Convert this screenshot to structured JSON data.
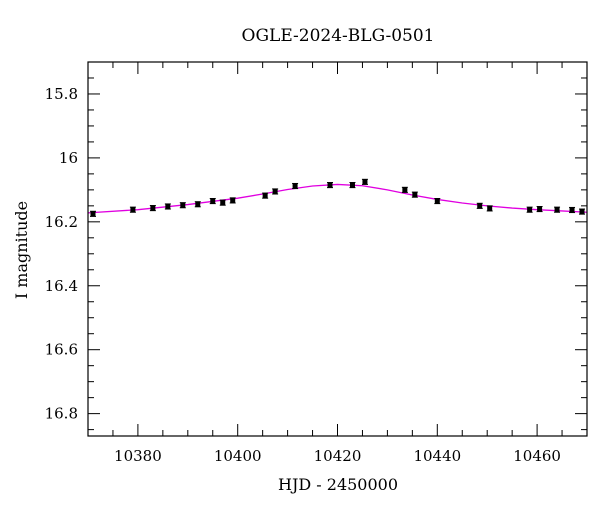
{
  "chart_data": {
    "type": "scatter",
    "title": "OGLE-2024-BLG-0501",
    "xlabel": "HJD - 2450000",
    "ylabel": "I magnitude",
    "xlim": [
      10370,
      10470
    ],
    "ylim": [
      15.7,
      16.87
    ],
    "y_inverted": true,
    "x_ticks": [
      10380,
      10400,
      10420,
      10440,
      10460
    ],
    "x_tick_labels": [
      "10380",
      "10400",
      "10420",
      "10440",
      "10460"
    ],
    "y_ticks": [
      15.8,
      16.0,
      16.2,
      16.4,
      16.6,
      16.8
    ],
    "y_tick_labels": [
      "15.8",
      "16",
      "16.2",
      "16.4",
      "16.6",
      "16.8"
    ],
    "grid": false,
    "series": [
      {
        "name": "data",
        "kind": "points_with_errorbars",
        "color": "#000000",
        "points": [
          {
            "x": 10371.0,
            "y": 16.175,
            "err": 0.008
          },
          {
            "x": 10379.0,
            "y": 16.162,
            "err": 0.008
          },
          {
            "x": 10383.0,
            "y": 16.157,
            "err": 0.008
          },
          {
            "x": 10386.0,
            "y": 16.152,
            "err": 0.008
          },
          {
            "x": 10389.0,
            "y": 16.148,
            "err": 0.008
          },
          {
            "x": 10392.0,
            "y": 16.145,
            "err": 0.008
          },
          {
            "x": 10395.0,
            "y": 16.135,
            "err": 0.008
          },
          {
            "x": 10397.0,
            "y": 16.14,
            "err": 0.008
          },
          {
            "x": 10399.0,
            "y": 16.133,
            "err": 0.008
          },
          {
            "x": 10405.5,
            "y": 16.118,
            "err": 0.008
          },
          {
            "x": 10407.5,
            "y": 16.105,
            "err": 0.008
          },
          {
            "x": 10411.5,
            "y": 16.088,
            "err": 0.008
          },
          {
            "x": 10418.5,
            "y": 16.085,
            "err": 0.008
          },
          {
            "x": 10423.0,
            "y": 16.085,
            "err": 0.008
          },
          {
            "x": 10425.5,
            "y": 16.075,
            "err": 0.008
          },
          {
            "x": 10433.5,
            "y": 16.1,
            "err": 0.008
          },
          {
            "x": 10435.5,
            "y": 16.115,
            "err": 0.008
          },
          {
            "x": 10440.0,
            "y": 16.135,
            "err": 0.008
          },
          {
            "x": 10448.5,
            "y": 16.15,
            "err": 0.008
          },
          {
            "x": 10450.5,
            "y": 16.158,
            "err": 0.008
          },
          {
            "x": 10458.5,
            "y": 16.162,
            "err": 0.008
          },
          {
            "x": 10460.5,
            "y": 16.16,
            "err": 0.008
          },
          {
            "x": 10464.0,
            "y": 16.162,
            "err": 0.008
          },
          {
            "x": 10467.0,
            "y": 16.163,
            "err": 0.008
          },
          {
            "x": 10469.0,
            "y": 16.168,
            "err": 0.008
          }
        ]
      },
      {
        "name": "model",
        "kind": "line",
        "color": "#e000e0",
        "points": [
          {
            "x": 10370,
            "y": 16.172
          },
          {
            "x": 10380,
            "y": 16.162
          },
          {
            "x": 10390,
            "y": 16.146
          },
          {
            "x": 10400,
            "y": 16.126
          },
          {
            "x": 10405,
            "y": 16.113
          },
          {
            "x": 10410,
            "y": 16.099
          },
          {
            "x": 10415,
            "y": 16.088
          },
          {
            "x": 10420,
            "y": 16.083
          },
          {
            "x": 10425,
            "y": 16.087
          },
          {
            "x": 10430,
            "y": 16.1
          },
          {
            "x": 10435,
            "y": 16.116
          },
          {
            "x": 10440,
            "y": 16.13
          },
          {
            "x": 10445,
            "y": 16.141
          },
          {
            "x": 10450,
            "y": 16.15
          },
          {
            "x": 10455,
            "y": 16.157
          },
          {
            "x": 10460,
            "y": 16.162
          },
          {
            "x": 10465,
            "y": 16.166
          },
          {
            "x": 10470,
            "y": 16.17
          }
        ]
      }
    ]
  }
}
